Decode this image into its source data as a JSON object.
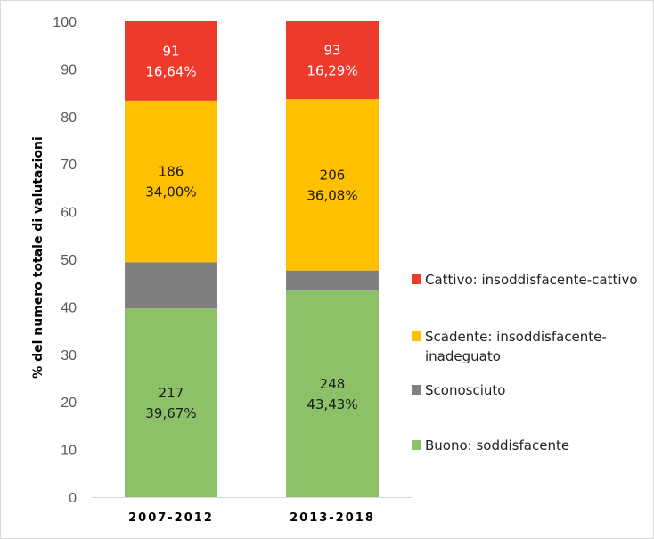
{
  "chart_data": {
    "type": "bar",
    "stacked": true,
    "categories": [
      "2007-2012",
      "2013-2018"
    ],
    "series": [
      {
        "name": "Buono: soddisfacente",
        "color": "#8cc168",
        "values": [
          39.67,
          43.43
        ],
        "labels": [
          [
            "217",
            "39,67%"
          ],
          [
            "248",
            "43,43%"
          ]
        ],
        "label_color": "#1a1a1a"
      },
      {
        "name": "Sconosciuto",
        "color": "#7f7f7f",
        "values": [
          9.69,
          4.2
        ],
        "labels": [
          null,
          null
        ],
        "label_color": "#1a1a1a"
      },
      {
        "name": "Scadente: insoddisfacente-inadeguato",
        "legend_lines": [
          "Scadente: insoddisfacente-",
          "inadeguato"
        ],
        "color": "#ffc000",
        "values": [
          34.0,
          36.08
        ],
        "labels": [
          [
            "186",
            "34,00%"
          ],
          [
            "206",
            "36,08%"
          ]
        ],
        "label_color": "#1a1a1a"
      },
      {
        "name": "Cattivo: insoddisfacente-cattivo",
        "color": "#ee3a2a",
        "values": [
          16.64,
          16.29
        ],
        "labels": [
          [
            "91",
            "16,64%"
          ],
          [
            "93",
            "16,29%"
          ]
        ],
        "label_color": "#ffffff"
      }
    ],
    "legend_order": [
      3,
      2,
      1,
      0
    ],
    "ylabel": "% del numero totale di valutazioni",
    "xlabel": "",
    "ylim": [
      0,
      100
    ],
    "yticks": [
      0,
      10,
      20,
      30,
      40,
      50,
      60,
      70,
      80,
      90,
      100
    ],
    "legend_position": "right"
  }
}
